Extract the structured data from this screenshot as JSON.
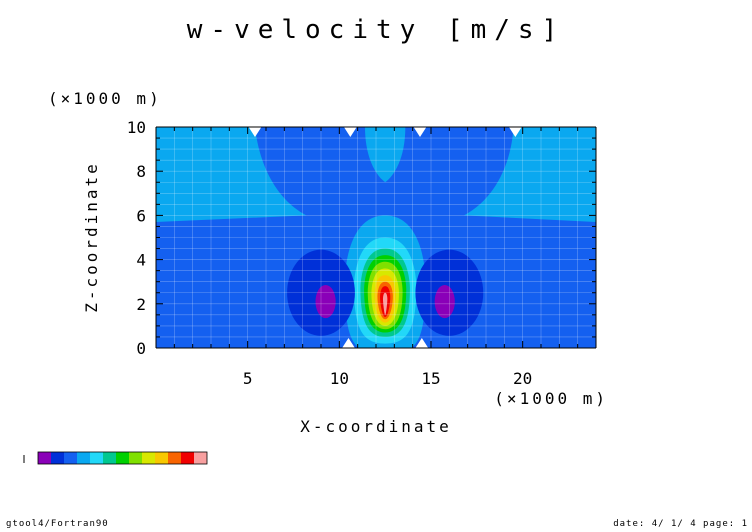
{
  "chart_data": {
    "type": "heatmap",
    "title": "w-velocity [m/s]",
    "xlabel": "X-coordinate",
    "ylabel": "Z-coordinate",
    "x_unit": "(×1000 m)",
    "y_unit": "(×1000 m)",
    "xlim": [
      0,
      24
    ],
    "ylim": [
      0,
      10
    ],
    "xticks": [
      "5",
      "10",
      "15",
      "20"
    ],
    "yticks": [
      "0",
      "2",
      "4",
      "6",
      "8",
      "10"
    ],
    "grid": true,
    "colorbar": {
      "placement": "bottom-left",
      "colors": [
        "#8a00b8",
        "#0030d8",
        "#1460f0",
        "#0aa8f0",
        "#22d8f8",
        "#00c890",
        "#00d000",
        "#80e000",
        "#d8e800",
        "#f8c800",
        "#f86400",
        "#f00000",
        "#f8a0a0"
      ]
    },
    "field": {
      "description_levels": "contour fill levels, 0 = lowest",
      "background_level": 2,
      "upper_band_level": 3
    }
  },
  "footer": {
    "left": "gtool4/Fortran90",
    "right": "date: 4/ 1/ 4 page: 1"
  }
}
